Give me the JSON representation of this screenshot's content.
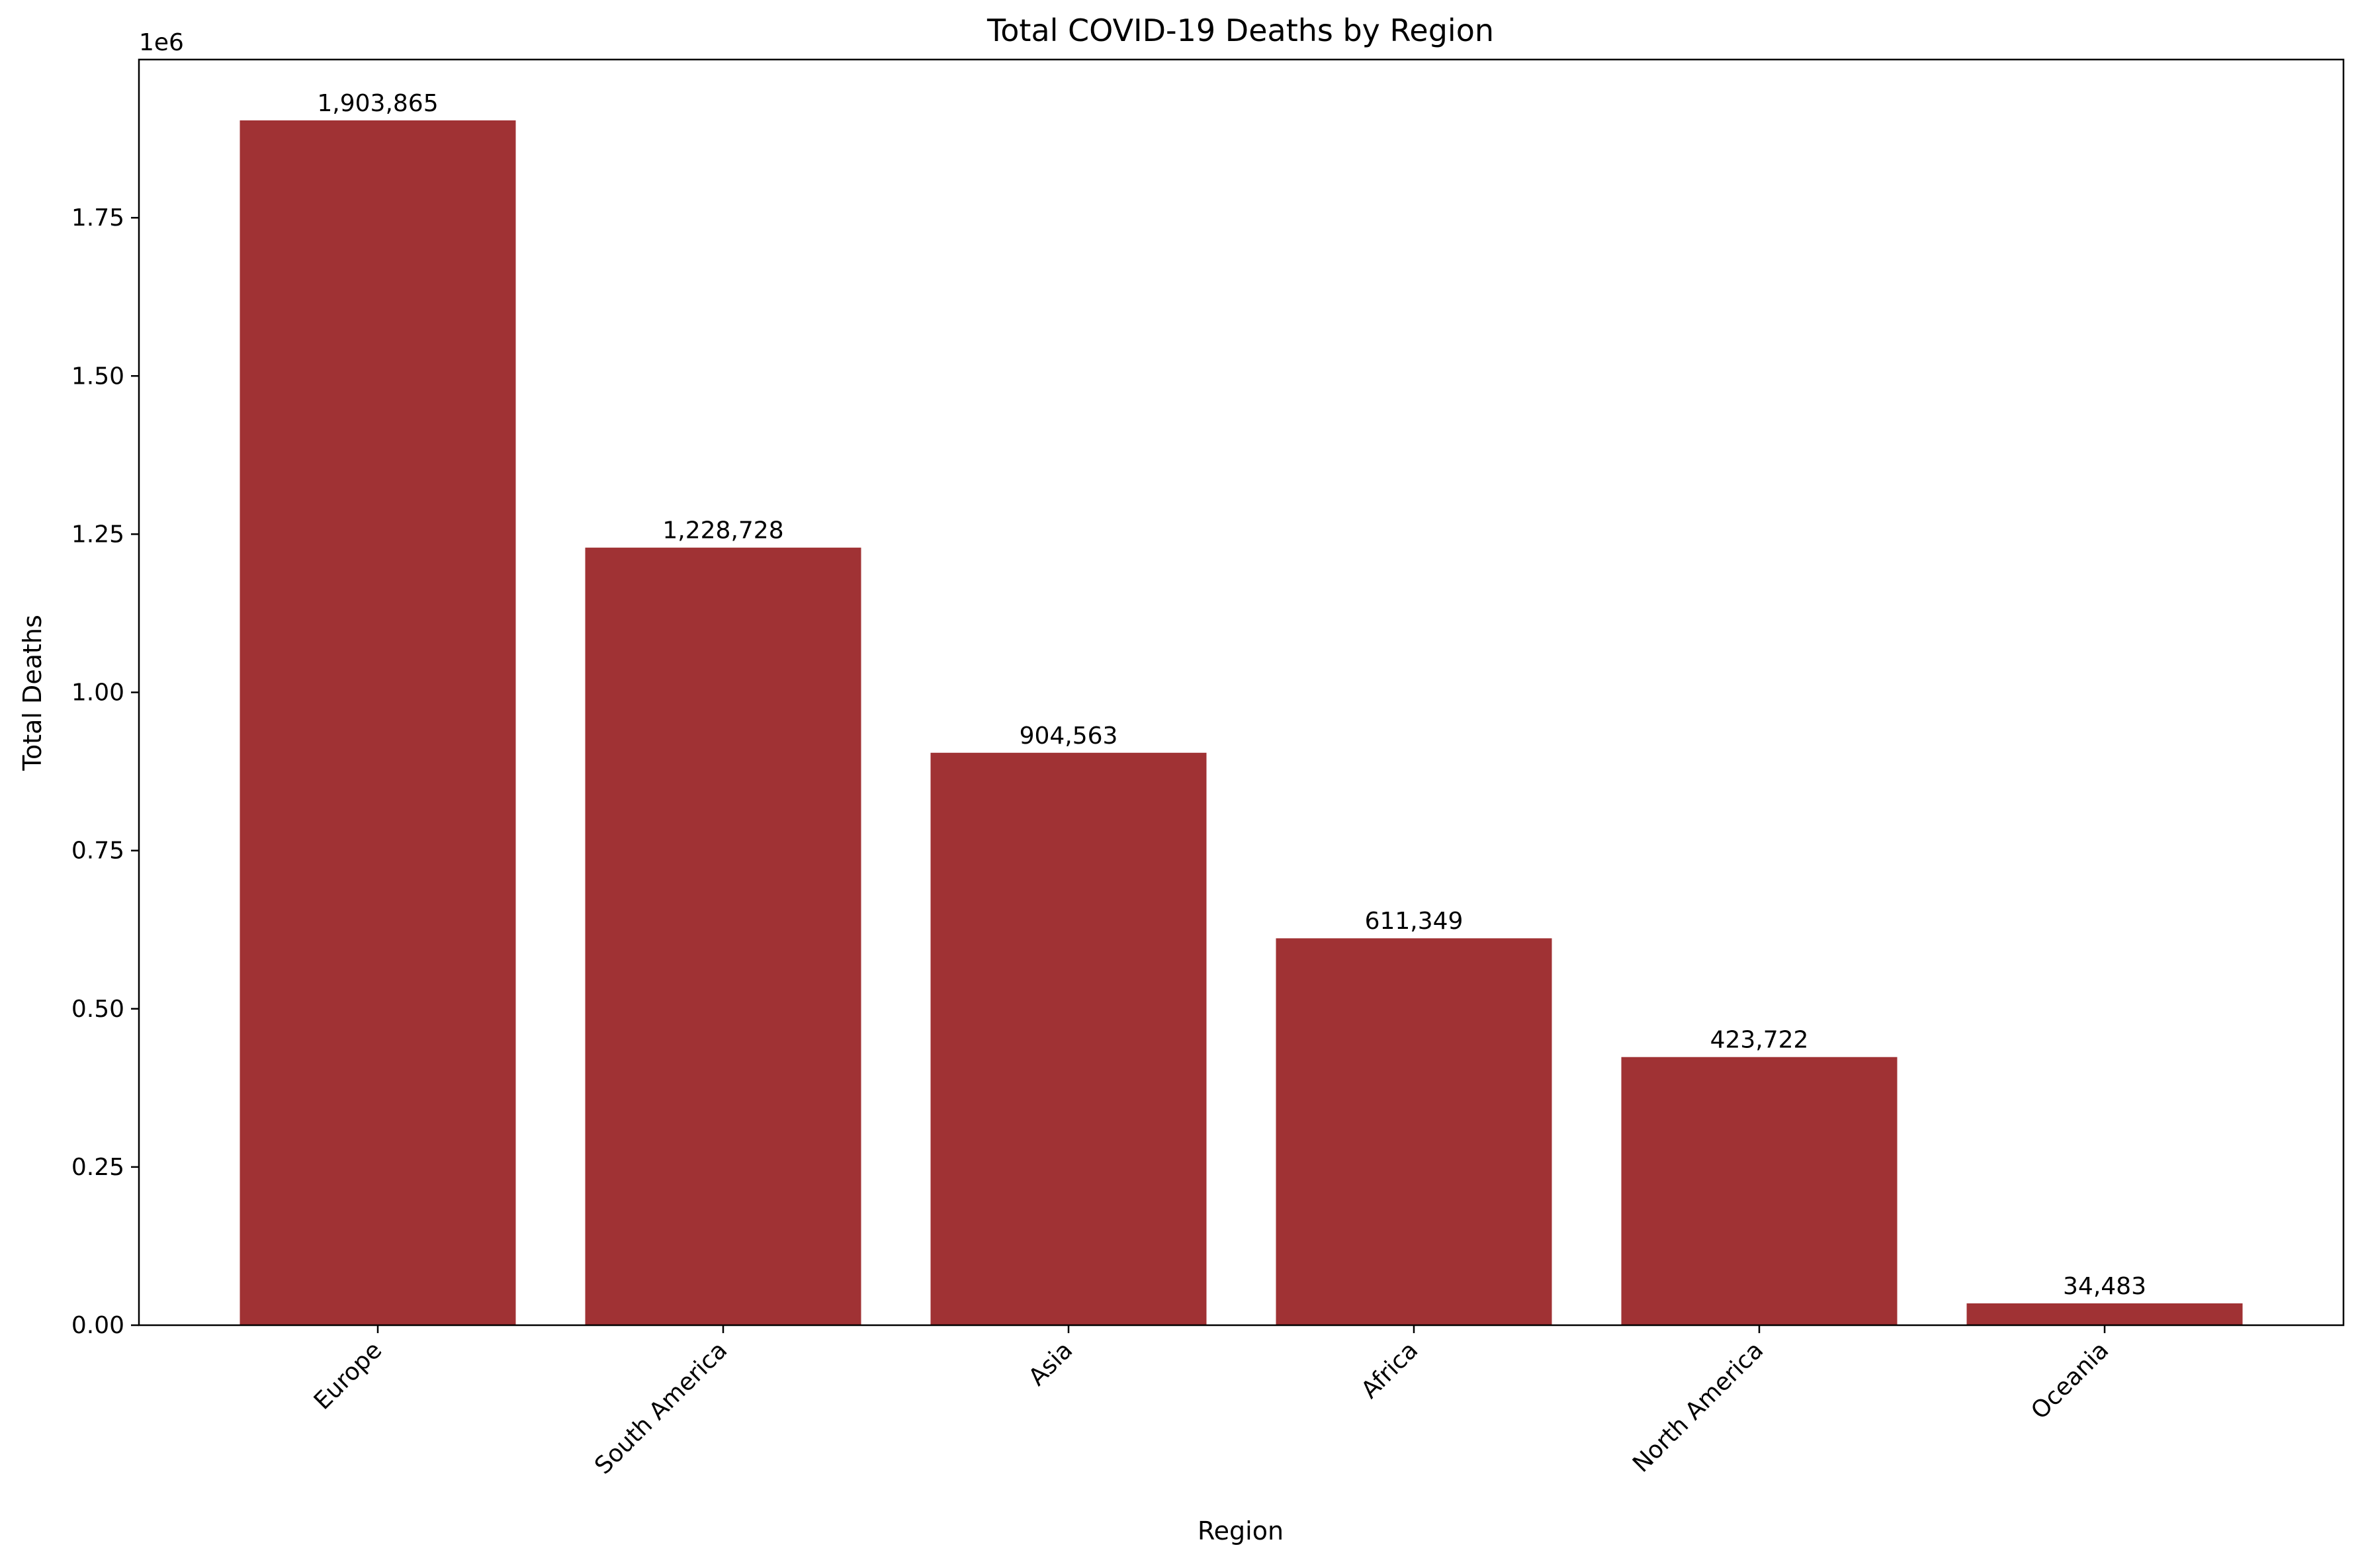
{
  "chart_data": {
    "type": "bar",
    "title": "Total COVID-19 Deaths by Region",
    "xlabel": "Region",
    "ylabel": "Total Deaths",
    "y_offset_label": "1e6",
    "categories": [
      "Europe",
      "South America",
      "Asia",
      "Africa",
      "North America",
      "Oceania"
    ],
    "values": [
      1903865,
      1228728,
      904563,
      611349,
      423722,
      34483
    ],
    "data_labels": [
      "1,903,865",
      "1,228,728",
      "904,563",
      "611,349",
      "423,722",
      "34,483"
    ],
    "ylim": [
      0,
      2000000
    ],
    "y_ticks": [
      0,
      250000,
      500000,
      750000,
      1000000,
      1250000,
      1500000,
      1750000
    ],
    "y_tick_labels": [
      "0.00",
      "0.25",
      "0.50",
      "0.75",
      "1.00",
      "1.25",
      "1.50",
      "1.75"
    ],
    "bar_color": "#a03234",
    "grid": false,
    "legend": "none"
  }
}
